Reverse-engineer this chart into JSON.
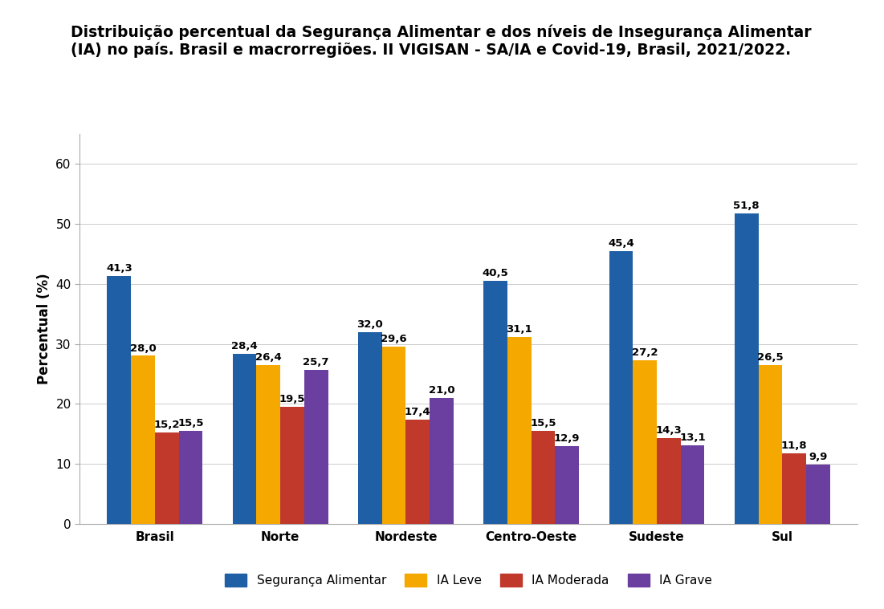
{
  "title_line1": "Distribuição percentual da Segurança Alimentar e dos níveis de Insegurança Alimentar",
  "title_line2": "(IA) no país. Brasil e macrorregiões. II VIGISAN - SA/IA e Covid-19, Brasil, 2021/2022.",
  "categories": [
    "Brasil",
    "Norte",
    "Nordeste",
    "Centro-Oeste",
    "Sudeste",
    "Sul"
  ],
  "series": {
    "Segurança Alimentar": [
      41.3,
      28.4,
      32.0,
      40.5,
      45.4,
      51.8
    ],
    "IA Leve": [
      28.0,
      26.4,
      29.6,
      31.1,
      27.2,
      26.5
    ],
    "IA Moderada": [
      15.2,
      19.5,
      17.4,
      15.5,
      14.3,
      11.8
    ],
    "IA Grave": [
      15.5,
      25.7,
      21.0,
      12.9,
      13.1,
      9.9
    ]
  },
  "colors": {
    "Segurança Alimentar": "#1F5FA6",
    "IA Leve": "#F5A800",
    "IA Moderada": "#C0392B",
    "IA Grave": "#6B3FA0"
  },
  "ylabel": "Percentual (%)",
  "ylim": [
    0,
    65
  ],
  "yticks": [
    0,
    10,
    20,
    30,
    40,
    50,
    60
  ],
  "bar_width": 0.19,
  "title_fontsize": 13.5,
  "label_fontsize": 9.5,
  "tick_fontsize": 11,
  "ylabel_fontsize": 12,
  "legend_fontsize": 11,
  "background_color": "#ffffff"
}
